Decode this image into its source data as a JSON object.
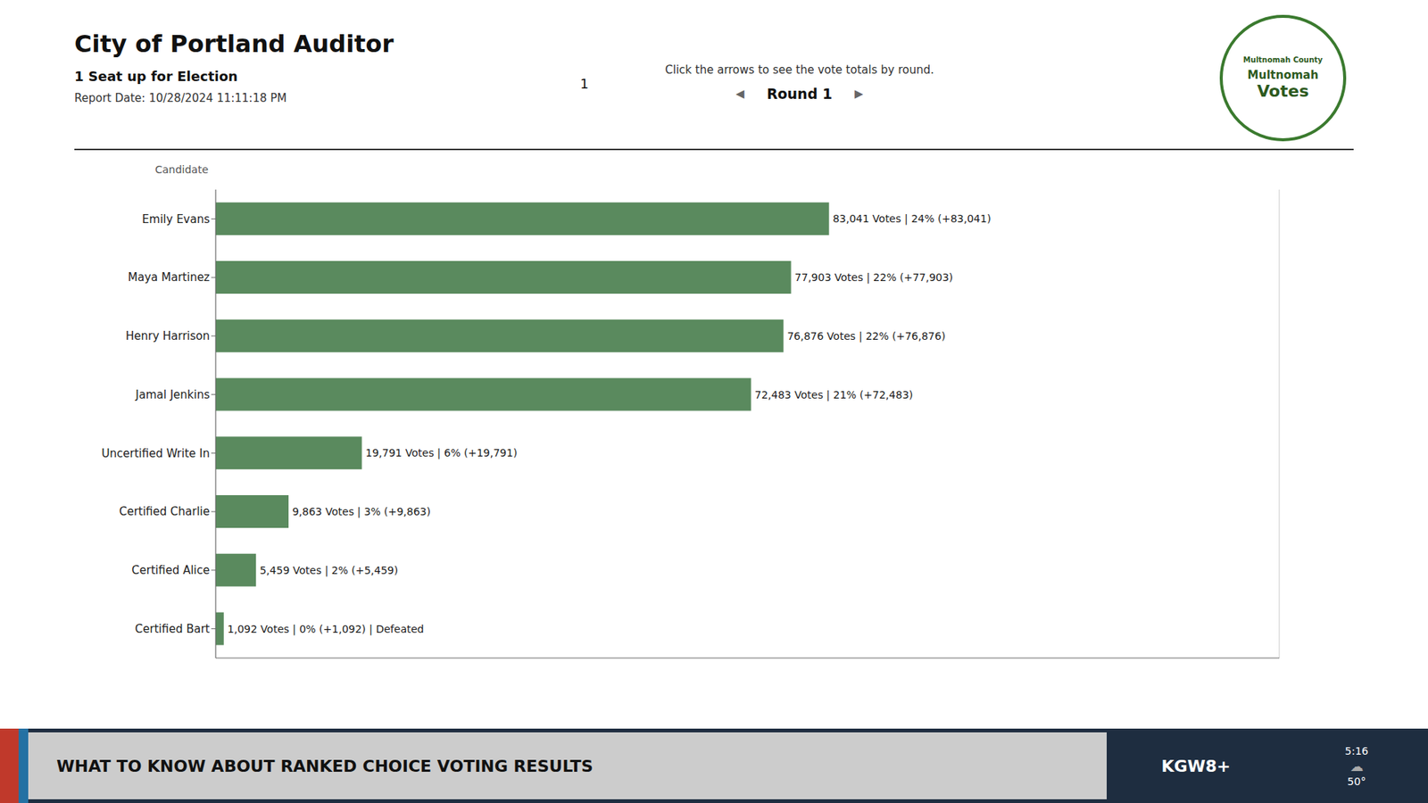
{
  "chart_data": {
    "type": "bar",
    "title": "City of Portland Auditor",
    "subtitle": [
      "1 Seat up for Election",
      "Report Date: 10/28/2024 11:11:18 PM"
    ],
    "orientation": "horizontal",
    "categories": [
      "Emily Evans",
      "Maya Martinez",
      "Henry Harrison",
      "Jamal Jenkins",
      "Uncertified Write In",
      "Certified Charlie",
      "Certified Alice",
      "Certified Bart"
    ],
    "values": [
      83041,
      77903,
      76876,
      72483,
      19791,
      9863,
      5459,
      1092
    ],
    "value_labels": [
      "83,041 Votes | 24% (+83,041)",
      "77,903 Votes | 22% (+77,903)",
      "76,876 Votes | 22% (+76,876)",
      "72,483 Votes | 21% (+72,483)",
      "19,791 Votes | 6% (+19,791)",
      "9,863 Votes | 3% (+9,863)",
      "5,459 Votes | 2% (+5,459)",
      "1,092 Votes | 0% (+1,092) | Defeated"
    ],
    "data_labels": true,
    "color": "#5a8a5e",
    "xlim": [
      0,
      144000
    ],
    "xticks": [
      0,
      18000,
      36000,
      54000,
      72000,
      90000
    ],
    "grid": true,
    "tick_labels": "y",
    "annotations": [
      "1",
      "Click the arrows to see the vote totals by round.",
      "◀",
      "Round 1",
      "▶",
      "Candidate",
      "Multnomah County",
      "Multnomah",
      "Votes",
      "WHAT TO KNOW ABOUT RANKED CHOICE VOTING RESULTS",
      "KGW8+",
      "5:16",
      "☁",
      "50°"
    ]
  }
}
